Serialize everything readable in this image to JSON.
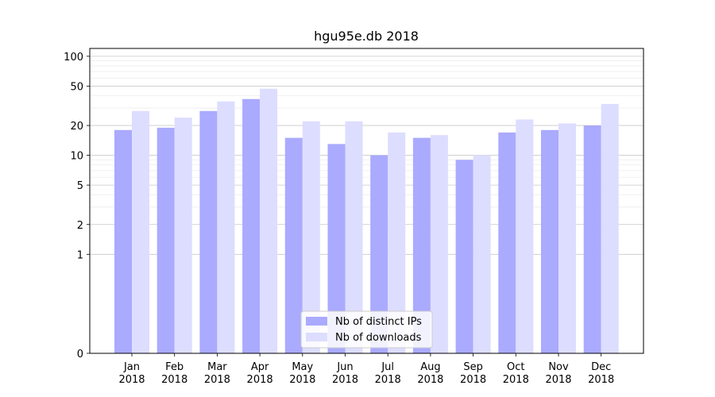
{
  "chart_data": {
    "type": "bar",
    "title": "hgu95e.db 2018",
    "xlabel": "",
    "ylabel": "",
    "y_scale": "symlog",
    "ylim": [
      0,
      120
    ],
    "y_ticks": [
      0,
      1,
      2,
      5,
      10,
      20,
      50,
      100
    ],
    "y_tick_labels": [
      "0",
      "1",
      "2",
      "5",
      "10",
      "20",
      "50",
      "100"
    ],
    "categories": [
      {
        "month": "Jan",
        "year": "2018"
      },
      {
        "month": "Feb",
        "year": "2018"
      },
      {
        "month": "Mar",
        "year": "2018"
      },
      {
        "month": "Apr",
        "year": "2018"
      },
      {
        "month": "May",
        "year": "2018"
      },
      {
        "month": "Jun",
        "year": "2018"
      },
      {
        "month": "Jul",
        "year": "2018"
      },
      {
        "month": "Aug",
        "year": "2018"
      },
      {
        "month": "Sep",
        "year": "2018"
      },
      {
        "month": "Oct",
        "year": "2018"
      },
      {
        "month": "Nov",
        "year": "2018"
      },
      {
        "month": "Dec",
        "year": "2018"
      }
    ],
    "series": [
      {
        "name": "Nb of distinct IPs",
        "color": "#aaaaff",
        "values": [
          18,
          19,
          28,
          37,
          15,
          13,
          10,
          15,
          9,
          17,
          18,
          20
        ]
      },
      {
        "name": "Nb of downloads",
        "color": "#ddddff",
        "values": [
          28,
          24,
          35,
          47,
          22,
          22,
          17,
          16,
          10,
          23,
          21,
          33
        ]
      }
    ],
    "grid": true,
    "legend_position": "bottom-center"
  }
}
